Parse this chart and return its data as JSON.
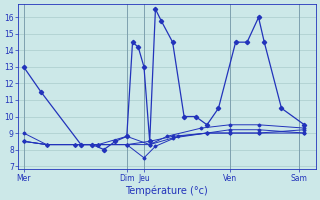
{
  "background_color": "#cce8e8",
  "grid_color": "#aacccc",
  "line_color": "#2233bb",
  "xlabel": "Température (°c)",
  "xlabel_fontsize": 7,
  "yticks": [
    7,
    8,
    9,
    10,
    11,
    12,
    13,
    14,
    15,
    16
  ],
  "xtick_labels": [
    "Mer",
    "Dim",
    "Jeu",
    "Ven",
    "Sam"
  ],
  "xtick_positions": [
    0.5,
    9.5,
    11.0,
    18.5,
    24.5
  ],
  "vlines": [
    0.5,
    9.5,
    11.0,
    18.5,
    24.5
  ],
  "ylim": [
    6.8,
    16.8
  ],
  "xlim": [
    0,
    26
  ],
  "main_line": [
    [
      0.5,
      13.0
    ],
    [
      2.0,
      11.5
    ],
    [
      5.5,
      8.3
    ],
    [
      6.5,
      8.3
    ],
    [
      7.5,
      8.0
    ],
    [
      8.5,
      8.5
    ],
    [
      9.5,
      8.8
    ],
    [
      10.0,
      14.5
    ],
    [
      10.5,
      14.2
    ],
    [
      11.0,
      13.0
    ],
    [
      11.5,
      8.5
    ],
    [
      12.0,
      16.5
    ],
    [
      12.5,
      15.8
    ],
    [
      13.5,
      14.5
    ],
    [
      14.5,
      10.0
    ],
    [
      15.5,
      10.0
    ],
    [
      16.5,
      9.5
    ],
    [
      17.5,
      10.5
    ],
    [
      19.0,
      14.5
    ],
    [
      20.0,
      14.5
    ],
    [
      21.0,
      16.0
    ],
    [
      21.5,
      14.5
    ],
    [
      23.0,
      10.5
    ],
    [
      25.0,
      9.5
    ]
  ],
  "sec_lines": [
    [
      [
        0.5,
        9.0
      ],
      [
        2.5,
        8.3
      ],
      [
        5.0,
        8.3
      ],
      [
        7.0,
        8.3
      ],
      [
        9.5,
        8.8
      ],
      [
        11.5,
        8.3
      ],
      [
        13.0,
        8.8
      ],
      [
        16.0,
        9.3
      ],
      [
        18.5,
        9.5
      ],
      [
        21.0,
        9.5
      ],
      [
        25.0,
        9.3
      ]
    ],
    [
      [
        0.5,
        8.5
      ],
      [
        2.5,
        8.3
      ],
      [
        5.0,
        8.3
      ],
      [
        7.0,
        8.3
      ],
      [
        9.5,
        8.3
      ],
      [
        11.0,
        7.5
      ],
      [
        12.0,
        8.2
      ],
      [
        14.0,
        8.8
      ],
      [
        16.5,
        9.0
      ],
      [
        18.5,
        9.2
      ],
      [
        21.0,
        9.2
      ],
      [
        25.0,
        9.0
      ]
    ],
    [
      [
        0.5,
        8.5
      ],
      [
        2.5,
        8.3
      ],
      [
        5.0,
        8.3
      ],
      [
        7.0,
        8.3
      ],
      [
        9.5,
        8.3
      ],
      [
        11.5,
        8.3
      ],
      [
        13.5,
        8.7
      ],
      [
        16.5,
        9.0
      ],
      [
        18.5,
        9.0
      ],
      [
        21.0,
        9.0
      ],
      [
        25.0,
        9.0
      ]
    ],
    [
      [
        0.5,
        8.5
      ],
      [
        2.5,
        8.3
      ],
      [
        5.0,
        8.3
      ],
      [
        7.0,
        8.3
      ],
      [
        9.5,
        8.3
      ],
      [
        11.5,
        8.5
      ],
      [
        13.5,
        8.8
      ],
      [
        16.5,
        9.0
      ],
      [
        18.5,
        9.0
      ],
      [
        21.0,
        9.0
      ],
      [
        25.0,
        9.2
      ]
    ]
  ]
}
